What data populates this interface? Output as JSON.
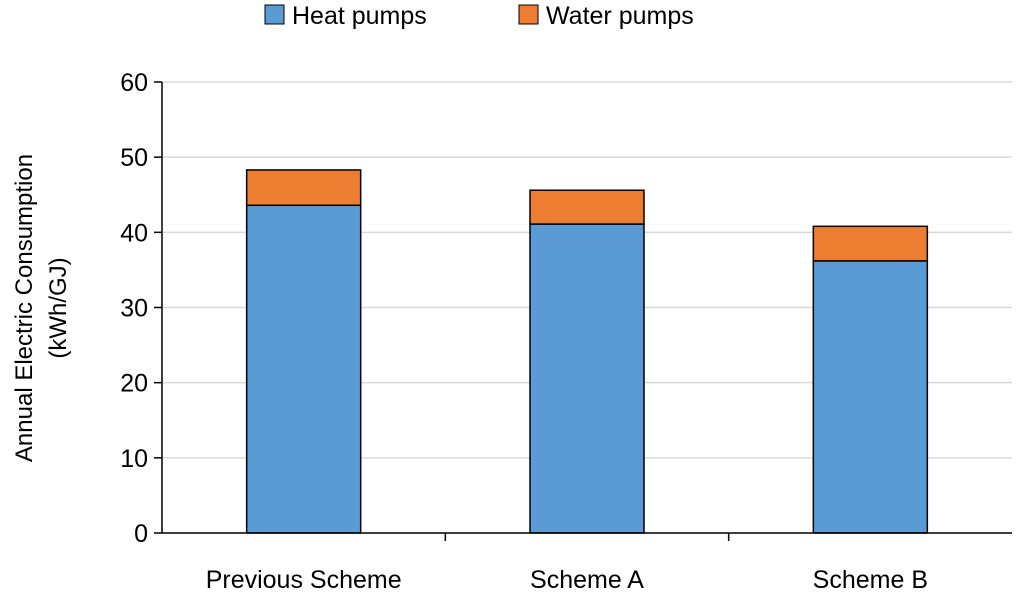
{
  "chart_data": {
    "type": "bar",
    "stacked": true,
    "categories": [
      "Previous Scheme",
      "Scheme A",
      "Scheme B"
    ],
    "series": [
      {
        "name": "Heat pumps",
        "color": "#5B9BD5",
        "values": [
          43.6,
          41.1,
          36.2
        ]
      },
      {
        "name": "Water pumps",
        "color": "#ED7D31",
        "values": [
          4.7,
          4.5,
          4.6
        ]
      }
    ],
    "ylabel_lines": [
      "Annual Electric Consumption",
      "(kWh/GJ)"
    ],
    "ylim": [
      0,
      60
    ],
    "yticks": [
      0,
      10,
      20,
      30,
      40,
      50,
      60
    ],
    "grid": true,
    "legend_position": "top"
  }
}
